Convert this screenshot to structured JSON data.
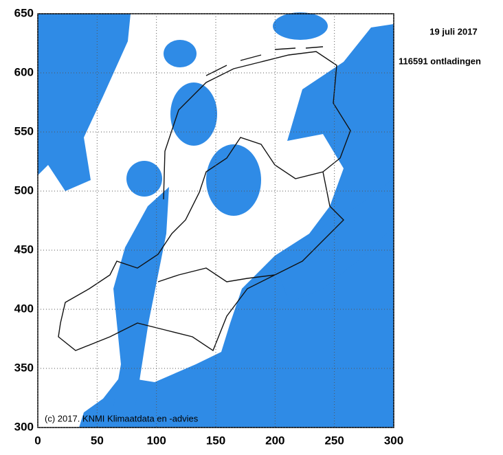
{
  "map": {
    "date": "19 juli 2017",
    "count_label": "116591 ontladingen",
    "credit": "(c) 2017. KNMI Klimaatdata en -advies",
    "xlim": [
      0,
      300
    ],
    "xticks": [
      0,
      50,
      100,
      150,
      200,
      250,
      300
    ],
    "ylim": [
      300,
      650
    ],
    "yticks": [
      300,
      350,
      400,
      450,
      500,
      550,
      600,
      650
    ]
  }
}
